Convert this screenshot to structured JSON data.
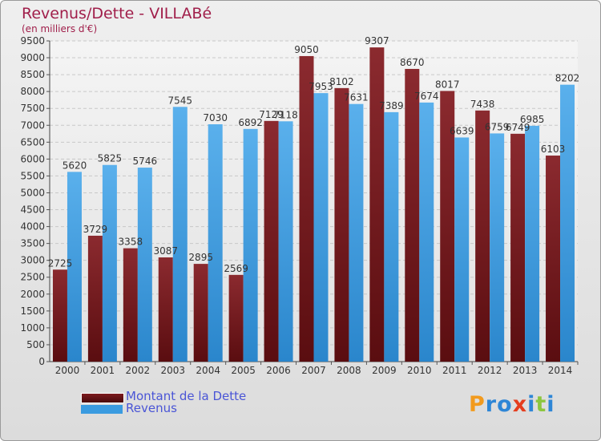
{
  "chart_data": {
    "type": "bar",
    "title": "Revenus/Dette - VILLABé",
    "subtitle": "(en milliers d'€)",
    "categories": [
      "2000",
      "2001",
      "2002",
      "2003",
      "2004",
      "2005",
      "2006",
      "2007",
      "2008",
      "2009",
      "2010",
      "2011",
      "2012",
      "2013",
      "2014"
    ],
    "series": [
      {
        "name": "Montant de la Dette",
        "color": "#7d1a1f",
        "values": [
          2725,
          3729,
          3358,
          3087,
          2895,
          2569,
          7129,
          9050,
          8102,
          9307,
          8670,
          8017,
          7438,
          6749,
          6103
        ],
        "labels": [
          "2725",
          "3729",
          "3358",
          "3087",
          "2895",
          "2569",
          "7129",
          "9050",
          "8102",
          "9307",
          "8670",
          "8017",
          "7438",
          "6749",
          "6103"
        ]
      },
      {
        "name": "Revenus",
        "color": "#3a9be0",
        "values": [
          5620,
          5825,
          5746,
          7545,
          7030,
          6892,
          7118,
          7953,
          7631,
          7389,
          7674,
          6639,
          6759,
          6985,
          8202
        ],
        "labels": [
          "5620",
          "5825",
          "5746",
          "7545",
          "7030",
          "6892",
          "7118",
          "7953",
          "7631",
          "7389",
          "7674",
          "6639",
          "6759",
          "6985",
          "8202"
        ]
      }
    ],
    "ylim": [
      0,
      9500
    ],
    "yticks": [
      0,
      500,
      1000,
      1500,
      2000,
      2500,
      3000,
      3500,
      4000,
      4500,
      5000,
      5500,
      6000,
      6500,
      7000,
      7500,
      8000,
      8500,
      9000,
      9500
    ],
    "grid": true,
    "legend_position": "bottom-left"
  },
  "logo": {
    "letters": [
      "P",
      "r",
      "o",
      "x",
      "i",
      "t",
      "i"
    ],
    "colors": [
      "#f29a1d",
      "#2e86d6",
      "#2e86d6",
      "#e53d1e",
      "#2e86d6",
      "#8cc63f",
      "#2e86d6"
    ]
  }
}
